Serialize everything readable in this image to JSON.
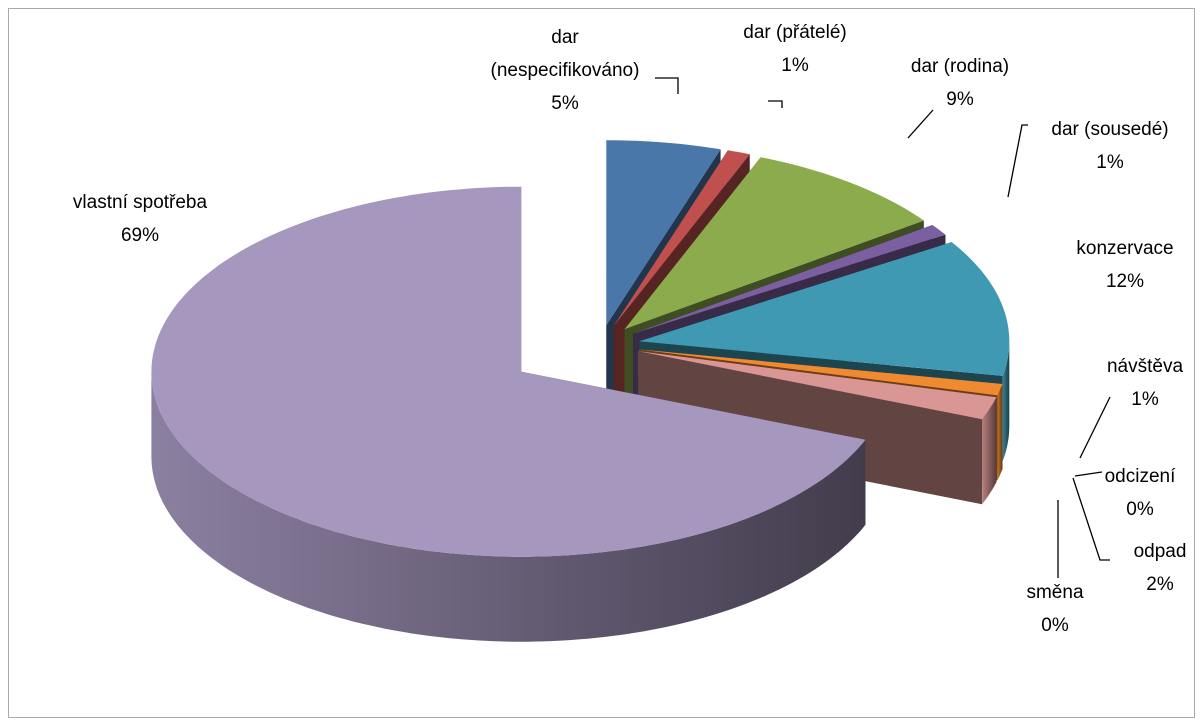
{
  "chart_data": {
    "type": "pie3d",
    "categories": [
      "dar (nespecifikováno)",
      "dar (přátelé)",
      "dar (rodina)",
      "dar (sousedé)",
      "konzervace",
      "návštěva",
      "odcizení",
      "odpad",
      "směna",
      "vlastní spotřeba"
    ],
    "values": [
      5,
      1,
      9,
      1,
      12,
      1,
      0,
      2,
      0,
      69
    ],
    "value_labels": [
      "5%",
      "1%",
      "9%",
      "1%",
      "12%",
      "1%",
      "0%",
      "2%",
      "0%",
      "69%"
    ],
    "colors": [
      "#4a77aa",
      "#c0504d",
      "#8cab4c",
      "#7b5fa0",
      "#3f99b2",
      "#f08a30",
      "#4f6fa0",
      "#d99694",
      "#c3d69b",
      "#a597bd"
    ]
  }
}
